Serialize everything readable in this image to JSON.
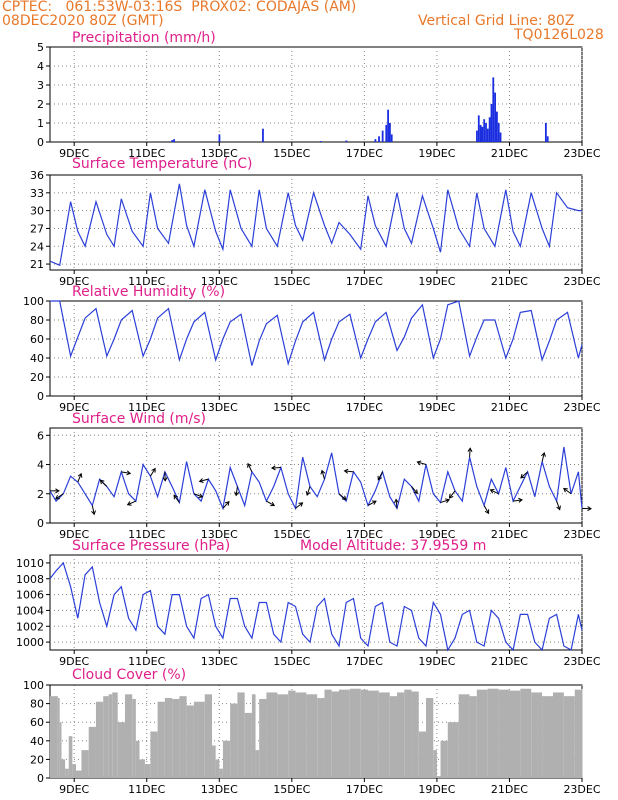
{
  "header": {
    "line1_left": "CPTEC:",
    "line1_coords": "061:53W-03:16S",
    "line1_station": "PROX02: CODAJAS (AM)",
    "line2_left": "08DEC2020 80Z (GMT)",
    "line2_right": "Vertical Grid Line: 80Z",
    "line3_right": "TQ0126L028"
  },
  "colors": {
    "header": "#e8782a",
    "title": "#e0208a",
    "line": "#2b3fd8",
    "bar": "#1a2ee0",
    "cloud": "#b0b0b0",
    "grid": "#888888"
  },
  "x_ticks": [
    "9DEC",
    "11DEC",
    "13DEC",
    "15DEC",
    "17DEC",
    "19DEC",
    "21DEC",
    "23DEC"
  ],
  "chart_data": [
    {
      "id": "precip",
      "type": "bar",
      "title": "Precipitation (mm/h)",
      "xlabel": "",
      "ylabel": "mm/h",
      "xlim": [
        8.333,
        23
      ],
      "ylim": [
        0,
        5
      ],
      "yticks": [
        0,
        1,
        2,
        3,
        4,
        5
      ],
      "x": [
        11.7,
        11.75,
        13.0,
        14.2,
        15.8,
        16.5,
        17.3,
        17.4,
        17.5,
        17.6,
        17.65,
        17.7,
        17.75,
        20.1,
        20.15,
        20.2,
        20.25,
        20.3,
        20.35,
        20.4,
        20.45,
        20.5,
        20.55,
        20.6,
        20.65,
        20.7,
        20.75,
        22.0,
        22.05
      ],
      "values": [
        0.1,
        0.15,
        0.4,
        0.7,
        0.05,
        0.08,
        0.15,
        0.3,
        0.6,
        0.9,
        1.7,
        1.0,
        0.4,
        0.6,
        1.4,
        0.9,
        0.8,
        1.2,
        1.0,
        0.7,
        1.3,
        2.0,
        3.4,
        2.6,
        1.6,
        1.0,
        0.5,
        1.0,
        0.3
      ]
    },
    {
      "id": "temp",
      "type": "line",
      "title": "Surface Temperature (nC)",
      "xlabel": "",
      "ylabel": "C",
      "xlim": [
        8.333,
        23
      ],
      "ylim": [
        20,
        36
      ],
      "yticks": [
        21,
        24,
        27,
        30,
        33,
        36
      ],
      "x": [
        8.33,
        8.6,
        8.9,
        9.1,
        9.3,
        9.6,
        9.9,
        10.1,
        10.3,
        10.6,
        10.9,
        11.1,
        11.3,
        11.6,
        11.9,
        12.1,
        12.3,
        12.6,
        12.9,
        13.1,
        13.3,
        13.6,
        13.9,
        14.1,
        14.3,
        14.6,
        14.9,
        15.1,
        15.3,
        15.6,
        15.9,
        16.1,
        16.3,
        16.6,
        16.9,
        17.1,
        17.3,
        17.6,
        17.9,
        18.1,
        18.3,
        18.6,
        18.9,
        19.1,
        19.3,
        19.6,
        19.9,
        20.1,
        20.3,
        20.6,
        20.9,
        21.1,
        21.3,
        21.6,
        21.9,
        22.1,
        22.3,
        22.6,
        22.9,
        23.0
      ],
      "values": [
        21.5,
        20.8,
        31.5,
        26.5,
        24.0,
        31.5,
        26.0,
        24.0,
        32.0,
        26.5,
        24.0,
        33.0,
        27.0,
        24.5,
        34.5,
        27.5,
        24.0,
        33.5,
        26.5,
        23.5,
        33.5,
        27.0,
        24.0,
        33.5,
        27.0,
        24.0,
        33.0,
        27.5,
        25.0,
        33.0,
        27.5,
        24.5,
        28.0,
        26.0,
        23.5,
        32.5,
        27.5,
        24.0,
        33.0,
        27.0,
        24.5,
        32.5,
        27.0,
        23.0,
        33.5,
        27.0,
        24.0,
        33.0,
        27.0,
        24.0,
        33.5,
        26.5,
        24.0,
        33.0,
        27.0,
        24.0,
        33.0,
        30.5,
        30.0,
        30.0
      ]
    },
    {
      "id": "rh",
      "type": "line",
      "title": "Relative Humidity (%)",
      "xlabel": "",
      "ylabel": "%",
      "xlim": [
        8.333,
        23
      ],
      "ylim": [
        0,
        100
      ],
      "yticks": [
        0,
        20,
        40,
        60,
        80,
        100
      ],
      "x": [
        8.33,
        8.6,
        8.9,
        9.1,
        9.3,
        9.6,
        9.9,
        10.1,
        10.3,
        10.6,
        10.9,
        11.1,
        11.3,
        11.6,
        11.9,
        12.1,
        12.3,
        12.6,
        12.9,
        13.1,
        13.3,
        13.6,
        13.9,
        14.1,
        14.3,
        14.6,
        14.9,
        15.1,
        15.3,
        15.6,
        15.9,
        16.1,
        16.3,
        16.6,
        16.9,
        17.1,
        17.3,
        17.6,
        17.9,
        18.1,
        18.3,
        18.6,
        18.9,
        19.1,
        19.3,
        19.6,
        19.9,
        20.1,
        20.3,
        20.6,
        20.9,
        21.1,
        21.3,
        21.6,
        21.9,
        22.1,
        22.3,
        22.6,
        22.9,
        23.0
      ],
      "values": [
        100,
        100,
        42,
        62,
        82,
        92,
        42,
        60,
        80,
        90,
        42,
        60,
        82,
        92,
        38,
        60,
        78,
        88,
        38,
        60,
        78,
        86,
        32,
        58,
        76,
        85,
        34,
        58,
        78,
        88,
        38,
        60,
        78,
        86,
        40,
        60,
        78,
        88,
        48,
        62,
        82,
        96,
        40,
        60,
        96,
        100,
        42,
        62,
        80,
        80,
        40,
        60,
        88,
        90,
        38,
        58,
        80,
        88,
        40,
        54
      ]
    },
    {
      "id": "wind",
      "type": "line",
      "title": "Surface Wind (m/s)",
      "xlabel": "",
      "ylabel": "m/s",
      "xlim": [
        8.333,
        23
      ],
      "ylim": [
        0,
        6.5
      ],
      "yticks": [
        0,
        2,
        4,
        6
      ],
      "x": [
        8.33,
        8.5,
        8.7,
        8.9,
        9.1,
        9.3,
        9.5,
        9.7,
        9.9,
        10.1,
        10.3,
        10.5,
        10.7,
        10.9,
        11.1,
        11.3,
        11.5,
        11.7,
        11.9,
        12.1,
        12.3,
        12.5,
        12.7,
        12.9,
        13.1,
        13.3,
        13.5,
        13.7,
        13.9,
        14.1,
        14.3,
        14.5,
        14.7,
        14.9,
        15.1,
        15.3,
        15.5,
        15.7,
        15.9,
        16.1,
        16.3,
        16.5,
        16.7,
        16.9,
        17.1,
        17.3,
        17.5,
        17.7,
        17.9,
        18.1,
        18.3,
        18.5,
        18.7,
        18.9,
        19.1,
        19.3,
        19.5,
        19.7,
        19.9,
        20.1,
        20.3,
        20.5,
        20.7,
        20.9,
        21.1,
        21.3,
        21.5,
        21.7,
        21.9,
        22.1,
        22.3,
        22.5,
        22.7,
        22.9,
        23.0
      ],
      "values": [
        2.2,
        1.5,
        2.0,
        3.2,
        2.8,
        2.0,
        1.2,
        3.0,
        2.5,
        1.8,
        3.5,
        2.0,
        1.5,
        4.0,
        3.2,
        1.8,
        3.5,
        2.5,
        1.4,
        4.2,
        2.0,
        1.5,
        3.0,
        2.2,
        1.0,
        3.8,
        2.5,
        1.2,
        3.5,
        2.8,
        1.5,
        2.5,
        3.8,
        2.0,
        1.0,
        4.5,
        2.5,
        1.8,
        3.0,
        4.8,
        2.0,
        1.5,
        3.5,
        2.8,
        1.2,
        2.2,
        3.5,
        1.8,
        1.0,
        3.0,
        2.5,
        1.5,
        4.0,
        2.0,
        1.4,
        3.5,
        2.2,
        1.5,
        4.5,
        2.5,
        1.2,
        3.0,
        2.0,
        3.8,
        1.5,
        2.5,
        3.5,
        1.8,
        4.2,
        2.5,
        1.5,
        5.2,
        2.0,
        3.5,
        1.0
      ]
    },
    {
      "id": "pressure",
      "type": "line",
      "title": "Surface Pressure (hPa)",
      "subtitle": "Model Altitude: 37.9559 m",
      "xlabel": "",
      "ylabel": "hPa",
      "xlim": [
        8.333,
        23
      ],
      "ylim": [
        999,
        1011
      ],
      "yticks": [
        1000,
        1002,
        1004,
        1006,
        1008,
        1010
      ],
      "x": [
        8.33,
        8.5,
        8.7,
        8.9,
        9.1,
        9.3,
        9.5,
        9.7,
        9.9,
        10.1,
        10.3,
        10.5,
        10.7,
        10.9,
        11.1,
        11.3,
        11.5,
        11.7,
        11.9,
        12.1,
        12.3,
        12.5,
        12.7,
        12.9,
        13.1,
        13.3,
        13.5,
        13.7,
        13.9,
        14.1,
        14.3,
        14.5,
        14.7,
        14.9,
        15.1,
        15.3,
        15.5,
        15.7,
        15.9,
        16.1,
        16.3,
        16.5,
        16.7,
        16.9,
        17.1,
        17.3,
        17.5,
        17.7,
        17.9,
        18.1,
        18.3,
        18.5,
        18.7,
        18.9,
        19.1,
        19.3,
        19.5,
        19.7,
        19.9,
        20.1,
        20.3,
        20.5,
        20.7,
        20.9,
        21.1,
        21.3,
        21.5,
        21.7,
        21.9,
        22.1,
        22.3,
        22.5,
        22.7,
        22.9,
        23.0
      ],
      "values": [
        1008.0,
        1009.0,
        1010.0,
        1007.0,
        1003.0,
        1008.5,
        1009.5,
        1005.0,
        1002.0,
        1006.0,
        1007.0,
        1003.0,
        1001.5,
        1006.0,
        1006.5,
        1002.0,
        1001.0,
        1006.0,
        1006.0,
        1002.0,
        1000.5,
        1005.5,
        1006.0,
        1002.0,
        1000.5,
        1005.5,
        1005.5,
        1002.0,
        1000.5,
        1005.0,
        1005.0,
        1001.0,
        1000.0,
        1005.0,
        1004.5,
        1001.0,
        1000.0,
        1004.5,
        1005.5,
        1001.0,
        999.5,
        1005.0,
        1005.5,
        1000.5,
        999.5,
        1004.5,
        1005.0,
        1000.0,
        999.5,
        1004.5,
        1004.0,
        1000.5,
        999.5,
        1005.0,
        1003.5,
        999.0,
        1000.5,
        1003.5,
        1004.0,
        1000.0,
        999.5,
        1004.0,
        1003.0,
        1000.0,
        999.0,
        1003.5,
        1003.5,
        1000.0,
        999.0,
        1003.0,
        1003.5,
        999.5,
        999.0,
        1003.5,
        1001.5
      ]
    },
    {
      "id": "cloud",
      "type": "area",
      "title": "Cloud Cover (%)",
      "xlabel": "",
      "ylabel": "%",
      "xlim": [
        8.333,
        23
      ],
      "ylim": [
        0,
        100
      ],
      "yticks": [
        0,
        20,
        40,
        60,
        80,
        100
      ],
      "x": [
        8.33,
        8.55,
        8.6,
        8.65,
        8.75,
        8.85,
        8.95,
        9.05,
        9.2,
        9.4,
        9.6,
        9.8,
        9.95,
        10.05,
        10.2,
        10.4,
        10.6,
        10.7,
        10.8,
        10.95,
        11.1,
        11.3,
        11.5,
        11.7,
        11.9,
        12.1,
        12.3,
        12.6,
        12.8,
        12.9,
        13.0,
        13.1,
        13.3,
        13.5,
        13.7,
        13.9,
        14.0,
        14.1,
        14.3,
        14.6,
        14.9,
        15.1,
        15.4,
        15.7,
        15.9,
        16.1,
        16.3,
        16.6,
        16.9,
        17.1,
        17.4,
        17.7,
        17.9,
        18.1,
        18.3,
        18.5,
        18.7,
        18.9,
        19.0,
        19.1,
        19.3,
        19.6,
        19.9,
        20.1,
        20.4,
        20.7,
        21.0,
        21.3,
        21.6,
        21.9,
        22.2,
        22.5,
        22.8,
        23.0
      ],
      "values": [
        88,
        86,
        60,
        20,
        10,
        45,
        15,
        8,
        30,
        55,
        82,
        88,
        90,
        92,
        60,
        90,
        85,
        40,
        20,
        15,
        50,
        82,
        86,
        85,
        88,
        78,
        82,
        90,
        35,
        20,
        10,
        40,
        80,
        92,
        70,
        90,
        30,
        85,
        92,
        90,
        94,
        92,
        90,
        86,
        95,
        93,
        95,
        96,
        95,
        94,
        92,
        88,
        92,
        95,
        93,
        50,
        86,
        30,
        2,
        40,
        60,
        90,
        88,
        95,
        96,
        95,
        94,
        96,
        92,
        88,
        92,
        88,
        95,
        96
      ]
    }
  ]
}
